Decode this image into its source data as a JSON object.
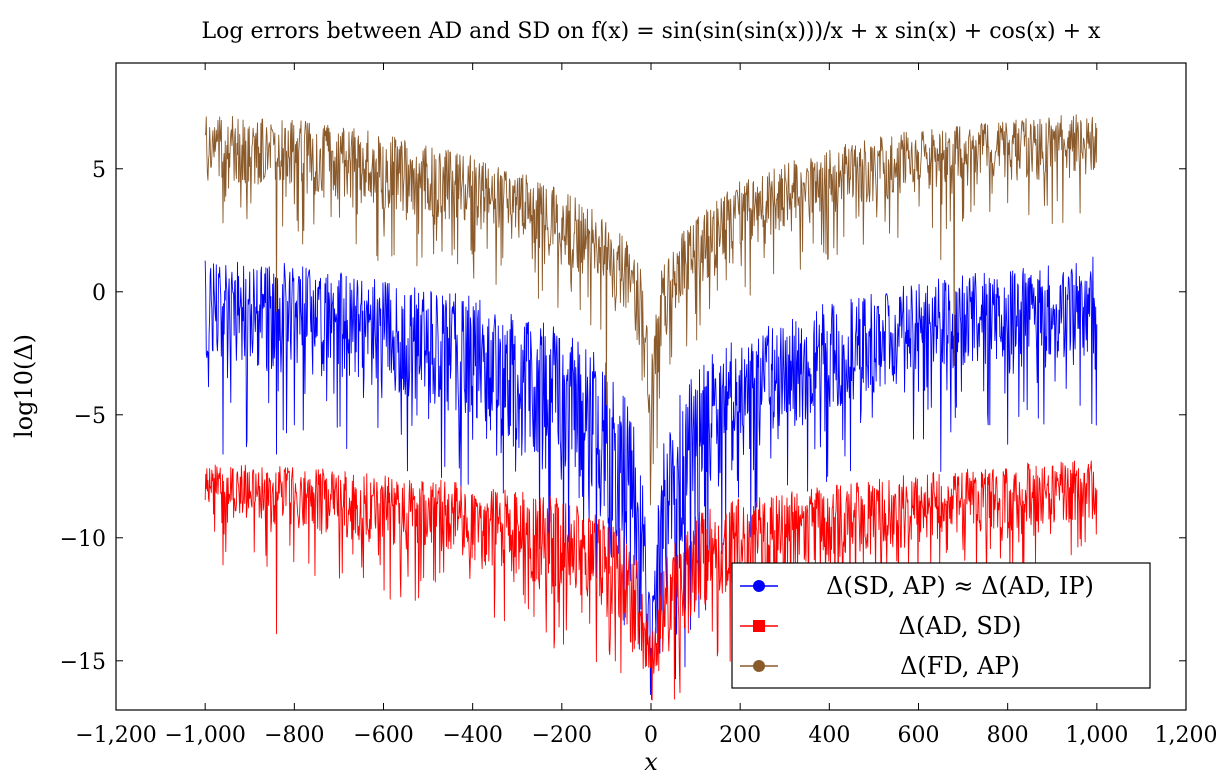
{
  "chart_data": {
    "type": "line",
    "title": "Log errors between AD and SD on f(x) = sin(sin(sin(x)))/x + x sin(x) + cos(x) + x",
    "xlabel": "x",
    "ylabel": "log10(Δ)",
    "xlim": [
      -1200,
      1200
    ],
    "ylim": [
      -17.0,
      9.3
    ],
    "xticks": [
      -1200,
      -1000,
      -800,
      -600,
      -400,
      -200,
      0,
      200,
      400,
      600,
      800,
      1000,
      1200
    ],
    "xtick_labels": [
      "−1,200",
      "−1,000",
      "−800",
      "−600",
      "−400",
      "−200",
      "0",
      "200",
      "400",
      "600",
      "800",
      "1,000",
      "1,200"
    ],
    "yticks": [
      -15,
      -10,
      -5,
      0,
      5
    ],
    "ytick_labels": [
      "−15",
      "−10",
      "−5",
      "0",
      "5"
    ],
    "grid": false,
    "legend_position": "bottom-right",
    "x_range_of_series": [
      -1000,
      1000
    ],
    "series": [
      {
        "name": "Δ(SD, AP) ≈ Δ(AD, IP)",
        "color": "#0000ff",
        "marker": "circle",
        "envelope_x": [
          -1000,
          -800,
          -600,
          -400,
          -200,
          -100,
          -50,
          -20,
          0,
          20,
          50,
          100,
          200,
          400,
          600,
          800,
          1000
        ],
        "envelope_top": [
          1.6,
          1.1,
          0.5,
          -0.2,
          -1.5,
          -2.8,
          -4.5,
          -6.5,
          -13.0,
          -6.5,
          -4.5,
          -3.0,
          -1.8,
          -0.4,
          0.4,
          1.0,
          1.5
        ],
        "envelope_median": [
          -0.6,
          -1.0,
          -1.6,
          -2.6,
          -4.5,
          -6.0,
          -8.0,
          -10.0,
          -14.8,
          -10.0,
          -8.0,
          -6.2,
          -4.2,
          -2.5,
          -1.4,
          -0.8,
          -0.5
        ],
        "spike_minima": [
          [
            -960,
            -6.6
          ],
          [
            -840,
            -6.6
          ],
          [
            -560,
            -5.8
          ],
          [
            -400,
            -6.0
          ],
          [
            650,
            -7.3
          ],
          [
            800,
            -6.2
          ]
        ]
      },
      {
        "name": "Δ(AD, SD)",
        "color": "#ff0000",
        "marker": "square",
        "envelope_x": [
          -1000,
          -800,
          -600,
          -400,
          -200,
          -100,
          -50,
          -20,
          0,
          20,
          50,
          100,
          200,
          400,
          600,
          800,
          1000
        ],
        "envelope_top": [
          -7.0,
          -7.1,
          -7.4,
          -7.8,
          -8.4,
          -9.0,
          -10.0,
          -11.5,
          -14.3,
          -11.5,
          -10.0,
          -9.0,
          -8.4,
          -7.8,
          -7.4,
          -7.0,
          -6.8
        ],
        "envelope_median": [
          -8.0,
          -8.3,
          -8.8,
          -9.3,
          -10.2,
          -11.0,
          -12.0,
          -13.5,
          -14.9,
          -13.5,
          -12.0,
          -11.0,
          -10.2,
          -9.3,
          -8.8,
          -8.3,
          -8.0
        ],
        "spike_minima": [
          [
            -960,
            -11.1
          ],
          [
            -840,
            -13.9
          ],
          [
            -520,
            -11.0
          ],
          [
            150,
            -14.6
          ],
          [
            380,
            -11.6
          ]
        ]
      },
      {
        "name": "Δ(FD, AP)",
        "color": "#8b5a2b",
        "marker": "circle",
        "envelope_x": [
          -1000,
          -800,
          -600,
          -400,
          -200,
          -100,
          -50,
          -20,
          0,
          20,
          50,
          100,
          200,
          400,
          600,
          800,
          1000
        ],
        "envelope_top": [
          7.2,
          7.0,
          6.5,
          5.6,
          4.2,
          3.0,
          2.0,
          0.8,
          -3.0,
          0.8,
          2.0,
          3.0,
          4.5,
          5.9,
          6.6,
          7.0,
          7.3
        ],
        "envelope_median": [
          6.0,
          5.6,
          5.0,
          4.2,
          2.8,
          1.6,
          0.6,
          -0.8,
          -5.0,
          -0.8,
          0.6,
          1.6,
          3.0,
          4.6,
          5.4,
          5.8,
          6.0
        ],
        "spike_minima": [
          [
            -960,
            2.8
          ],
          [
            -840,
            -0.8
          ],
          [
            -100,
            -4.6
          ],
          [
            -20,
            -3.6
          ],
          [
            650,
            1.3
          ],
          [
            680,
            -3.0
          ]
        ]
      }
    ]
  }
}
